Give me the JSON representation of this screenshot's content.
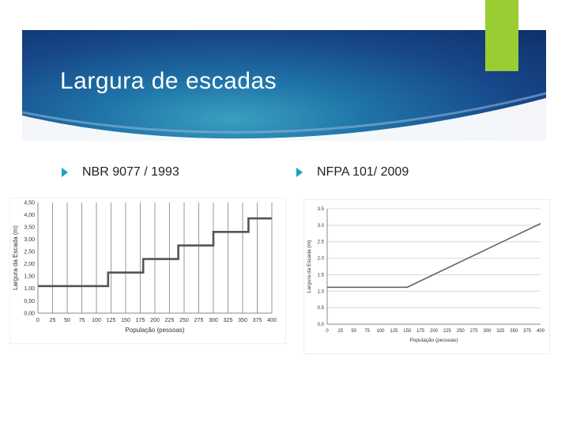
{
  "slide": {
    "title": "Largura de escadas",
    "accent_color": "#9acd32",
    "bullet_color": "#16a3c6",
    "bullets": [
      {
        "text": "NBR 9077 / 1993",
        "icon": "diamond-bullet-icon"
      },
      {
        "text": "NFPA 101/ 2009",
        "icon": "diamond-bullet-icon"
      }
    ]
  },
  "chart_data": [
    {
      "type": "line",
      "title": "",
      "xlabel": "População (pessoas)",
      "ylabel": "Largura da Escada (m)",
      "xlim": [
        0,
        400
      ],
      "ylim": [
        0,
        4.5
      ],
      "x_ticks": [
        0,
        25,
        50,
        75,
        100,
        125,
        150,
        175,
        200,
        225,
        250,
        275,
        300,
        325,
        350,
        375,
        400
      ],
      "y_ticks": [
        0,
        0.5,
        1.0,
        1.5,
        2.0,
        2.5,
        3.0,
        3.5,
        4.0,
        4.5
      ],
      "y_tick_labels": [
        "0,00",
        "0,50",
        "1,00",
        "1,50",
        "2,00",
        "2,50",
        "3,00",
        "3,50",
        "4,00",
        "4,50"
      ],
      "grid": "vertical",
      "series": [
        {
          "x": [
            0,
            120,
            120,
            180,
            180,
            240,
            240,
            300,
            300,
            360,
            360,
            400
          ],
          "values": [
            1.1,
            1.1,
            1.65,
            1.65,
            2.2,
            2.2,
            2.75,
            2.75,
            3.3,
            3.3,
            3.85,
            3.85
          ],
          "color": "#555555"
        }
      ]
    },
    {
      "type": "line",
      "title": "",
      "xlabel": "População (pessoas)",
      "ylabel": "Largura da Escada (m)",
      "xlim": [
        0,
        400
      ],
      "ylim": [
        0,
        3.5
      ],
      "x_ticks": [
        0,
        25,
        50,
        75,
        100,
        125,
        150,
        175,
        200,
        225,
        250,
        275,
        300,
        325,
        350,
        375,
        400
      ],
      "y_ticks": [
        0,
        0.5,
        1.0,
        1.5,
        2.0,
        2.5,
        3.0,
        3.5
      ],
      "y_tick_labels": [
        "0.0",
        "0.5",
        "1.0",
        "1.5",
        "2.0",
        "2.5",
        "3.0",
        "3.5"
      ],
      "grid": "horizontal",
      "series": [
        {
          "x": [
            0,
            150,
            400
          ],
          "values": [
            1.12,
            1.12,
            3.05
          ],
          "color": "#666666"
        }
      ]
    }
  ]
}
